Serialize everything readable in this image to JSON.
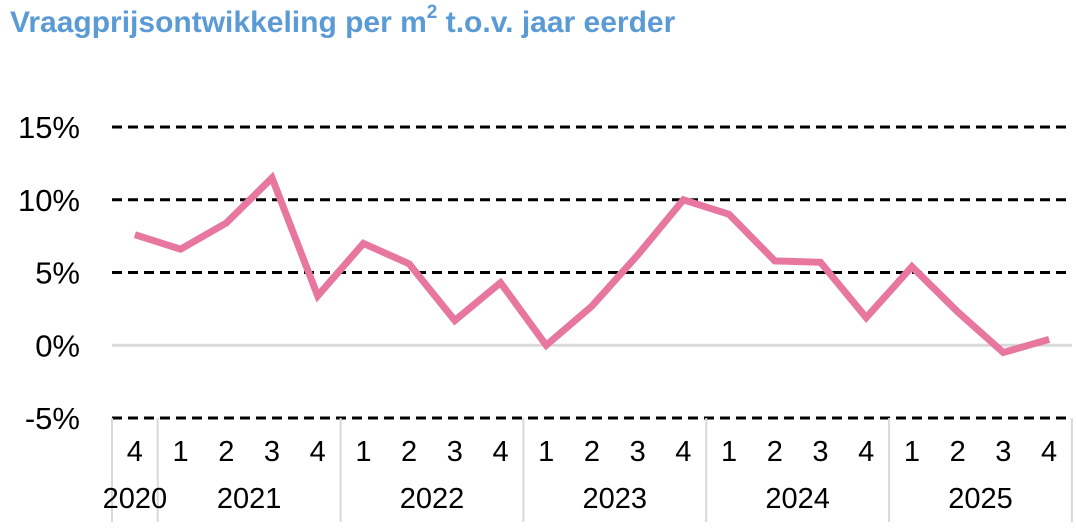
{
  "title": {
    "text": "Vraagprijsontwikkeling per m",
    "superscript": "2",
    "suffix": " t.o.v. jaar eerder"
  },
  "colors": {
    "title": "#5b9bd5",
    "line": "#e8779f",
    "grid": "#000000",
    "zero_line": "#d9d9d9"
  },
  "chart_data": {
    "type": "line",
    "title": "Vraagprijsontwikkeling per m2 t.o.v. jaar eerder",
    "xlabel": "",
    "ylabel": "",
    "ylim": [
      -5,
      15
    ],
    "yticks": [
      15,
      10,
      5,
      0,
      -5
    ],
    "ytick_labels": [
      "15%",
      "10%",
      "5%",
      "0%",
      "-5%"
    ],
    "grid": "dashed horizontal",
    "legend": "none",
    "categories": [
      "2020 Q4",
      "2021 Q1",
      "2021 Q2",
      "2021 Q3",
      "2021 Q4",
      "2022 Q1",
      "2022 Q2",
      "2022 Q3",
      "2022 Q4",
      "2023 Q1",
      "2023 Q2",
      "2023 Q3",
      "2023 Q4",
      "2024 Q1",
      "2024 Q2",
      "2024 Q3",
      "2024 Q4",
      "2025 Q1",
      "2025 Q2",
      "2025 Q3",
      "2025 Q4"
    ],
    "quarter_labels": [
      "4",
      "1",
      "2",
      "3",
      "4",
      "1",
      "2",
      "3",
      "4",
      "1",
      "2",
      "3",
      "4",
      "1",
      "2",
      "3",
      "4",
      "1",
      "2",
      "3",
      "4"
    ],
    "year_groups": [
      {
        "label": "2020",
        "start": 0,
        "count": 1
      },
      {
        "label": "2021",
        "start": 1,
        "count": 4
      },
      {
        "label": "2022",
        "start": 5,
        "count": 4
      },
      {
        "label": "2023",
        "start": 9,
        "count": 4
      },
      {
        "label": "2024",
        "start": 13,
        "count": 4
      },
      {
        "label": "2025",
        "start": 17,
        "count": 4
      }
    ],
    "series": [
      {
        "values": [
          7.6,
          6.6,
          8.4,
          11.5,
          3.4,
          7.0,
          5.6,
          1.7,
          4.3,
          0.0,
          2.7,
          6.2,
          10.0,
          9.0,
          5.8,
          5.7,
          1.9,
          5.4,
          2.3,
          -0.5,
          0.4
        ]
      }
    ]
  }
}
